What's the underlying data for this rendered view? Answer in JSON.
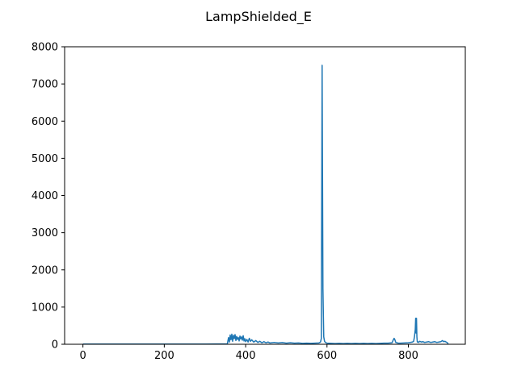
{
  "chart_data": {
    "type": "line",
    "title": "LampShielded_E",
    "xlabel": "",
    "ylabel": "",
    "xlim": [
      -45,
      940
    ],
    "ylim": [
      0,
      8000
    ],
    "xticks": [
      0,
      200,
      400,
      600,
      800
    ],
    "yticks": [
      0,
      1000,
      2000,
      3000,
      4000,
      5000,
      6000,
      7000,
      8000
    ],
    "grid": false,
    "series": [
      {
        "color": "#1f77b4",
        "x": [
          0,
          100,
          200,
          300,
          355,
          358,
          360,
          362,
          364,
          366,
          368,
          370,
          372,
          374,
          376,
          378,
          380,
          382,
          384,
          386,
          388,
          390,
          392,
          394,
          396,
          398,
          400,
          403,
          406,
          409,
          412,
          415,
          420,
          425,
          430,
          435,
          440,
          445,
          450,
          455,
          460,
          470,
          480,
          490,
          500,
          510,
          520,
          530,
          540,
          550,
          560,
          570,
          580,
          584,
          586,
          588,
          590,
          592,
          594,
          596,
          600,
          610,
          620,
          630,
          640,
          650,
          660,
          670,
          680,
          690,
          700,
          710,
          720,
          730,
          740,
          750,
          760,
          763,
          765,
          767,
          769,
          772,
          775,
          780,
          790,
          800,
          805,
          810,
          813,
          815,
          817,
          818,
          819,
          820,
          821,
          822,
          823,
          825,
          828,
          832,
          836,
          840,
          845,
          850,
          855,
          860,
          865,
          870,
          875,
          880,
          884,
          887,
          890,
          893,
          896,
          898
        ],
        "y": [
          5,
          5,
          5,
          5,
          10,
          180,
          60,
          250,
          120,
          270,
          80,
          240,
          150,
          260,
          100,
          210,
          130,
          180,
          90,
          220,
          140,
          200,
          110,
          230,
          90,
          150,
          70,
          130,
          60,
          160,
          80,
          120,
          60,
          100,
          50,
          80,
          40,
          70,
          40,
          60,
          35,
          50,
          35,
          45,
          30,
          40,
          30,
          35,
          25,
          30,
          25,
          30,
          35,
          60,
          150,
          7500,
          1500,
          200,
          80,
          50,
          30,
          25,
          20,
          25,
          20,
          25,
          20,
          25,
          20,
          25,
          20,
          25,
          20,
          25,
          30,
          30,
          40,
          120,
          160,
          120,
          50,
          40,
          30,
          30,
          35,
          40,
          50,
          60,
          80,
          200,
          400,
          700,
          300,
          700,
          200,
          60,
          70,
          50,
          80,
          60,
          70,
          50,
          60,
          70,
          50,
          60,
          70,
          50,
          60,
          70,
          100,
          70,
          80,
          60,
          40,
          10
        ]
      }
    ]
  }
}
